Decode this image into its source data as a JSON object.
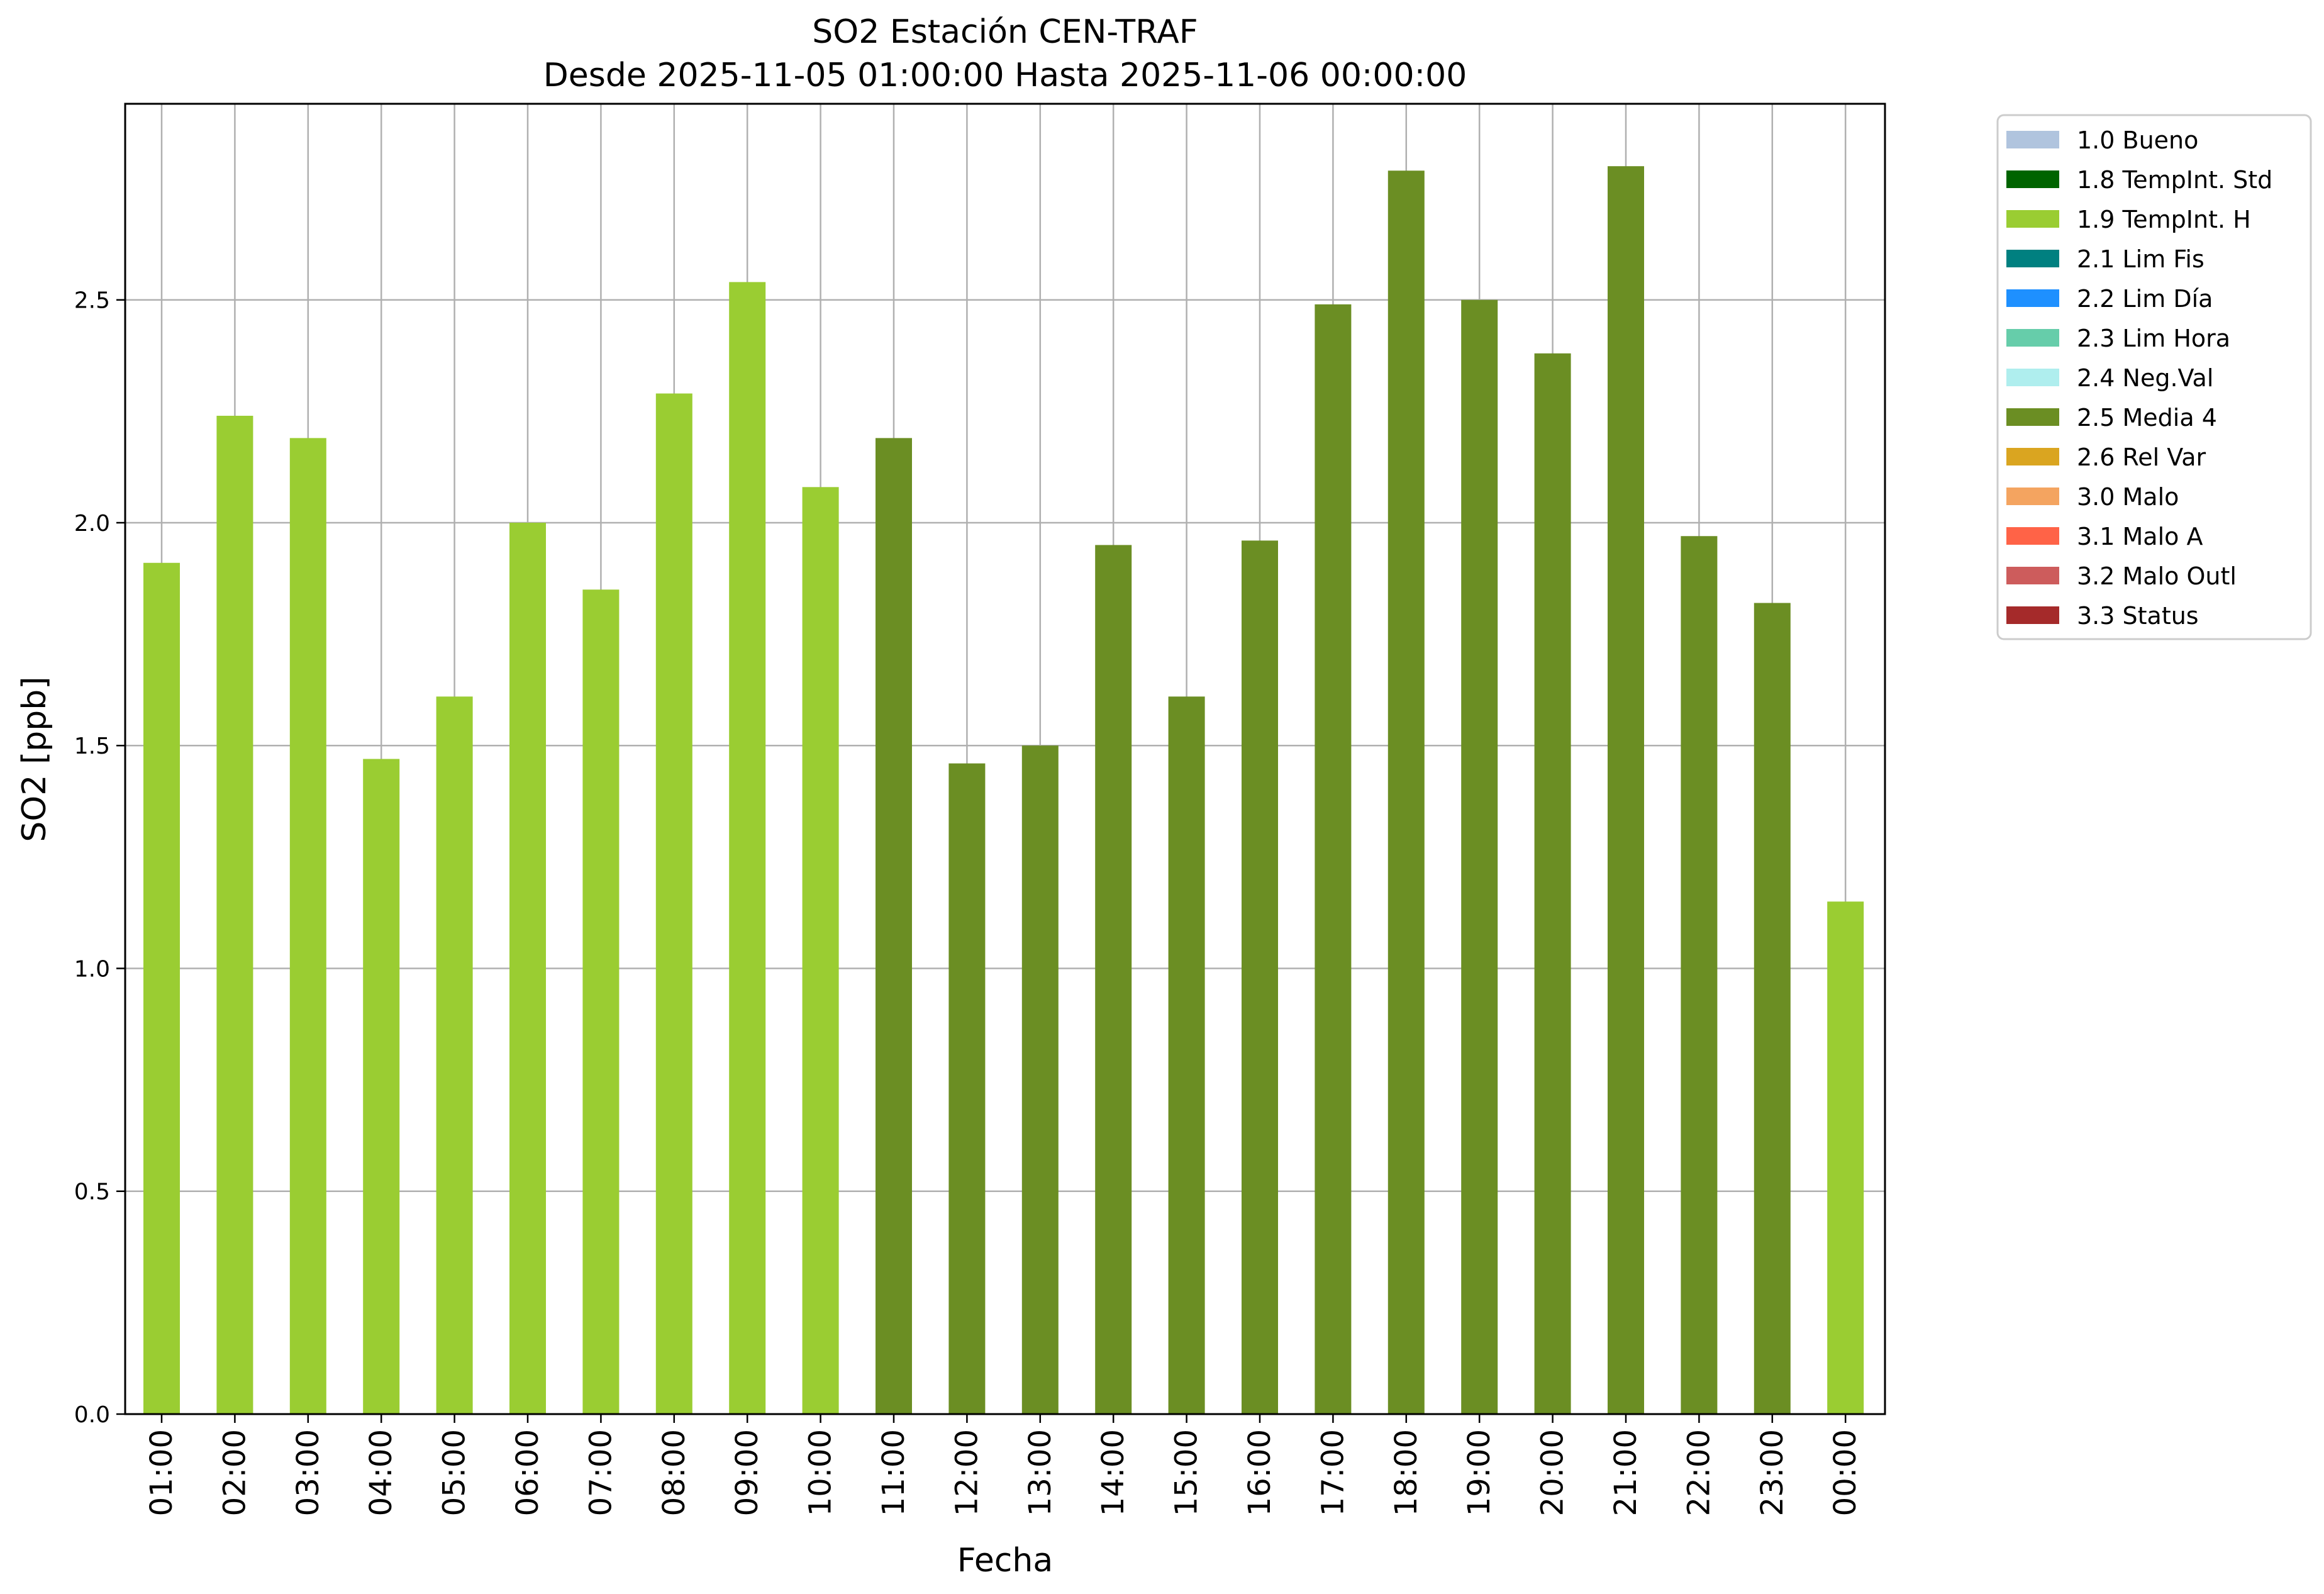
{
  "chart_data": {
    "type": "bar",
    "title": "SO2 Estación CEN-TRAF",
    "subtitle": "Desde 2025-11-05 01:00:00 Hasta 2025-11-06 00:00:00",
    "xlabel": "Fecha",
    "ylabel": "SO2 [ppb]",
    "ylim": [
      0,
      2.94
    ],
    "yticks": [
      "0.0",
      "0.5",
      "1.0",
      "1.5",
      "2.0",
      "2.5"
    ],
    "grid": true,
    "legend_position": "outside-right",
    "categories": [
      "01:00",
      "02:00",
      "03:00",
      "04:00",
      "05:00",
      "06:00",
      "07:00",
      "08:00",
      "09:00",
      "10:00",
      "11:00",
      "12:00",
      "13:00",
      "14:00",
      "15:00",
      "16:00",
      "17:00",
      "18:00",
      "19:00",
      "20:00",
      "21:00",
      "22:00",
      "23:00",
      "00:00"
    ],
    "values": [
      1.91,
      2.24,
      2.19,
      1.47,
      1.61,
      2.0,
      1.85,
      2.29,
      2.54,
      2.08,
      2.19,
      1.46,
      1.5,
      1.95,
      1.61,
      1.96,
      2.49,
      2.79,
      2.5,
      2.38,
      2.8,
      1.97,
      1.82,
      1.15
    ],
    "flags": [
      "1.9",
      "1.9",
      "1.9",
      "1.9",
      "1.9",
      "1.9",
      "1.9",
      "1.9",
      "1.9",
      "1.9",
      "2.5",
      "2.5",
      "2.5",
      "2.5",
      "2.5",
      "2.5",
      "2.5",
      "2.5",
      "2.5",
      "2.5",
      "2.5",
      "2.5",
      "2.5",
      "1.9"
    ],
    "legend": [
      {
        "code": "1.0",
        "label": "1.0 Bueno",
        "color": "#b0c4de"
      },
      {
        "code": "1.8",
        "label": "1.8 TempInt. Std",
        "color": "#006400"
      },
      {
        "code": "1.9",
        "label": "1.9 TempInt. H",
        "color": "#9acd32"
      },
      {
        "code": "2.1",
        "label": "2.1 Lim Fis",
        "color": "#008080"
      },
      {
        "code": "2.2",
        "label": "2.2 Lim Día",
        "color": "#1e90ff"
      },
      {
        "code": "2.3",
        "label": "2.3 Lim Hora",
        "color": "#66cdaa"
      },
      {
        "code": "2.4",
        "label": "2.4 Neg.Val",
        "color": "#afeeee"
      },
      {
        "code": "2.5",
        "label": "2.5 Media 4",
        "color": "#6b8e23"
      },
      {
        "code": "2.6",
        "label": "2.6 Rel Var",
        "color": "#daa520"
      },
      {
        "code": "3.0",
        "label": "3.0 Malo",
        "color": "#f4a460"
      },
      {
        "code": "3.1",
        "label": "3.1 Malo A",
        "color": "#ff6347"
      },
      {
        "code": "3.2",
        "label": "3.2 Malo Outl",
        "color": "#cd5c5c"
      },
      {
        "code": "3.3",
        "label": "3.3 Status",
        "color": "#a52a2a"
      }
    ]
  }
}
